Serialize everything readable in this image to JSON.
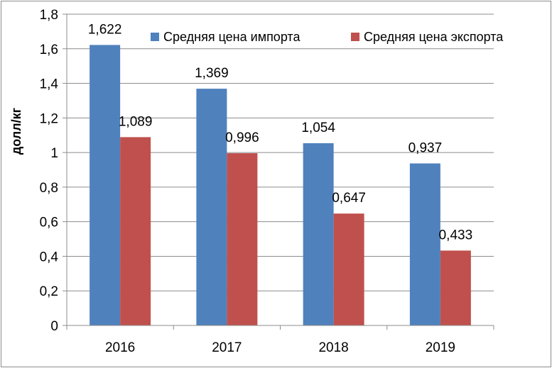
{
  "chart_data": {
    "type": "bar",
    "title": "",
    "xlabel": "",
    "ylabel": "долл/кг",
    "ylim": [
      0,
      1.8
    ],
    "ytick_step": 0.2,
    "y_tick_labels": [
      "0",
      "0,2",
      "0,4",
      "0,6",
      "0,8",
      "1",
      "1,2",
      "1,4",
      "1,6",
      "1,8"
    ],
    "categories": [
      "2016",
      "2017",
      "2018",
      "2019"
    ],
    "series": [
      {
        "name": "Средняя цена импорта",
        "color": "#4f81bd",
        "values": [
          1.622,
          1.369,
          1.054,
          0.937
        ],
        "labels": [
          "1,622",
          "1,369",
          "1,054",
          "0,937"
        ]
      },
      {
        "name": "Средняя цена экспорта",
        "color": "#c0504d",
        "values": [
          1.089,
          0.996,
          0.647,
          0.433
        ],
        "labels": [
          "1,089",
          "0,996",
          "0,647",
          "0,433"
        ]
      }
    ],
    "grid": true,
    "legend_position": "top-right"
  }
}
